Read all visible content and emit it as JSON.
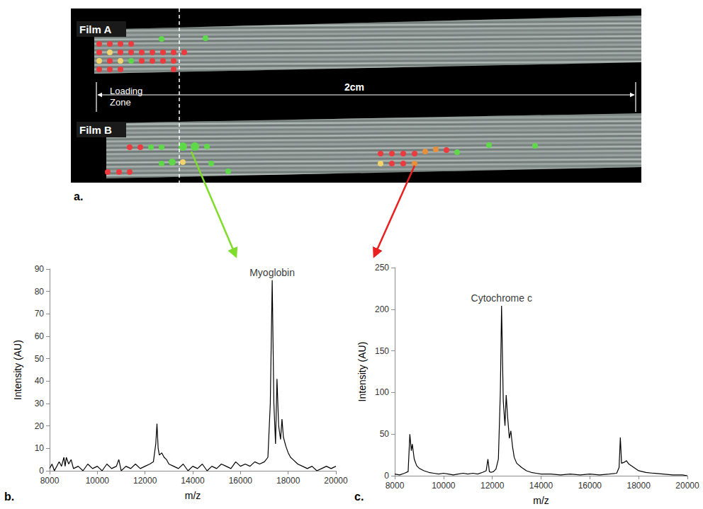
{
  "panel_a": {
    "label": "a.",
    "film_labels": [
      "Film A",
      "Film B"
    ],
    "zone_label": "Loading Zone",
    "scale_label": "2cm"
  },
  "chart_data": [
    {
      "type": "line",
      "panel_label": "b.",
      "x_label": "m/z",
      "y_label": "Intensity (AU)",
      "color": "#000000",
      "grid": false,
      "x": [
        8000,
        8100,
        8200,
        8300,
        8400,
        8500,
        8600,
        8650,
        8700,
        8800,
        8900,
        9000,
        9200,
        9400,
        9600,
        9800,
        10000,
        10200,
        10400,
        10600,
        10800,
        10900,
        11000,
        11200,
        11400,
        11600,
        11800,
        12000,
        12200,
        12350,
        12450,
        12500,
        12550,
        12600,
        12700,
        12800,
        12900,
        13000,
        13200,
        13400,
        13600,
        13800,
        14000,
        14200,
        14400,
        14600,
        14800,
        15000,
        15200,
        15400,
        15600,
        15800,
        16000,
        16200,
        16400,
        16600,
        16800,
        17000,
        17150,
        17250,
        17330,
        17400,
        17470,
        17530,
        17600,
        17680,
        17740,
        17800,
        17900,
        18000,
        18100,
        18200,
        18400,
        18600,
        18800,
        19000,
        19200,
        19400,
        19600,
        19800,
        20000
      ],
      "values": [
        1,
        3,
        0,
        2,
        4,
        2,
        6,
        2,
        6,
        3,
        5,
        1,
        2,
        0,
        3,
        1,
        2,
        0,
        3,
        1,
        2,
        5,
        0,
        2,
        1,
        3,
        1,
        2,
        3,
        4,
        12,
        21,
        10,
        7,
        8,
        6,
        5,
        3,
        2,
        1,
        3,
        0,
        2,
        1,
        3,
        0,
        2,
        1,
        3,
        2,
        1,
        4,
        2,
        3,
        2,
        4,
        3,
        4,
        6,
        30,
        85,
        30,
        12,
        41,
        20,
        14,
        23,
        15,
        11,
        8,
        6,
        5,
        3,
        2,
        1,
        2,
        0,
        1,
        2,
        1,
        2
      ],
      "xlim": [
        8000,
        20000
      ],
      "xticks": [
        8000,
        10000,
        12000,
        14000,
        16000,
        18000,
        20000
      ],
      "ylim": [
        0,
        90
      ],
      "yticks": [
        0,
        10,
        20,
        30,
        40,
        50,
        60,
        70,
        80,
        90
      ],
      "annotations": [
        {
          "text": "Myoglobin",
          "x": 17330,
          "y": 85
        }
      ]
    },
    {
      "type": "line",
      "panel_label": "c.",
      "x_label": "m/z",
      "y_label": "Intensity (AU)",
      "color": "#000000",
      "grid": false,
      "x": [
        8000,
        8200,
        8400,
        8550,
        8620,
        8680,
        8720,
        8800,
        8900,
        9000,
        9200,
        9400,
        9600,
        9800,
        10000,
        10200,
        10400,
        10600,
        10800,
        11000,
        11200,
        11400,
        11600,
        11750,
        11820,
        11880,
        11950,
        12050,
        12150,
        12250,
        12330,
        12380,
        12450,
        12520,
        12570,
        12630,
        12700,
        12760,
        12830,
        12900,
        13000,
        13200,
        13400,
        13600,
        13800,
        14000,
        14400,
        14800,
        15200,
        15600,
        16000,
        16400,
        16800,
        17100,
        17200,
        17250,
        17300,
        17400,
        17500,
        17600,
        17800,
        18000,
        18300,
        18600,
        19000,
        19400,
        19800,
        20000
      ],
      "values": [
        2,
        1,
        3,
        5,
        50,
        30,
        38,
        20,
        12,
        9,
        6,
        4,
        3,
        2,
        3,
        2,
        1,
        2,
        3,
        2,
        3,
        2,
        4,
        6,
        20,
        5,
        4,
        5,
        8,
        20,
        100,
        204,
        90,
        60,
        97,
        70,
        45,
        54,
        35,
        22,
        15,
        10,
        6,
        4,
        3,
        2,
        2,
        1,
        2,
        1,
        2,
        1,
        2,
        3,
        10,
        46,
        15,
        16,
        18,
        14,
        10,
        6,
        4,
        3,
        2,
        1,
        1,
        0
      ],
      "xlim": [
        8000,
        20000
      ],
      "xticks": [
        8000,
        10000,
        12000,
        14000,
        16000,
        18000,
        20000
      ],
      "ylim": [
        0,
        250
      ],
      "yticks": [
        0,
        50,
        100,
        150,
        200,
        250
      ],
      "annotations": [
        {
          "text": "Cytochrome c",
          "x": 12380,
          "y": 204
        }
      ]
    }
  ]
}
